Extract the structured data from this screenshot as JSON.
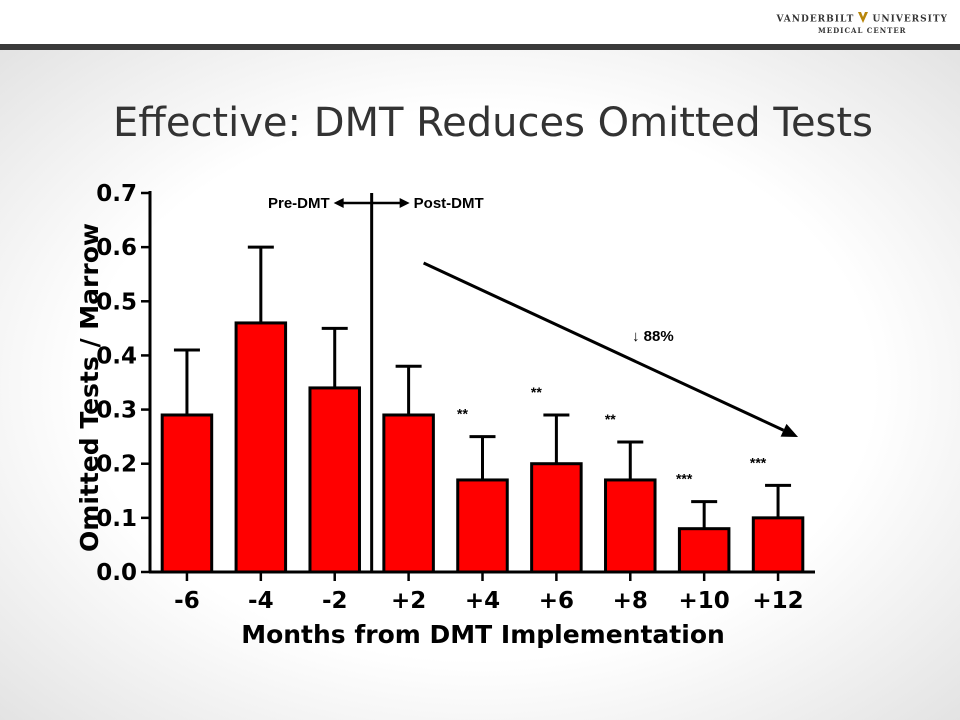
{
  "header": {
    "logo_line1_left": "VANDERBILT",
    "logo_line1_right": "UNIVERSITY",
    "logo_line2": "MEDICAL CENTER",
    "logo_icon": "vanderbilt-oak-leaf-v-icon"
  },
  "slide": {
    "title": "Effective: DMT Reduces Omitted Tests"
  },
  "chart_data": {
    "type": "bar",
    "categories": [
      "-6",
      "-4",
      "-2",
      "+2",
      "+4",
      "+6",
      "+8",
      "+10",
      "+12"
    ],
    "values": [
      0.29,
      0.46,
      0.34,
      0.29,
      0.17,
      0.2,
      0.17,
      0.08,
      0.1
    ],
    "error_upper": [
      0.41,
      0.6,
      0.45,
      0.38,
      0.25,
      0.29,
      0.24,
      0.13,
      0.16
    ],
    "significance": [
      "",
      "",
      "",
      "",
      "**",
      "**",
      "**",
      "***",
      "***"
    ],
    "ylabel": "Omitted Tests / Marrow",
    "xlabel": "Months from DMT Implementation",
    "ylim": [
      0,
      0.7
    ],
    "yticks": [
      "0.0",
      "0.1",
      "0.2",
      "0.3",
      "0.4",
      "0.5",
      "0.6",
      "0.7"
    ],
    "bar_color": "#ff0000",
    "divider_between": [
      "-2",
      "+2"
    ],
    "pre_label": "Pre-DMT",
    "post_label": "Post-DMT",
    "trend_annotation": "↓ 88%",
    "grid": false,
    "legend": "none"
  }
}
